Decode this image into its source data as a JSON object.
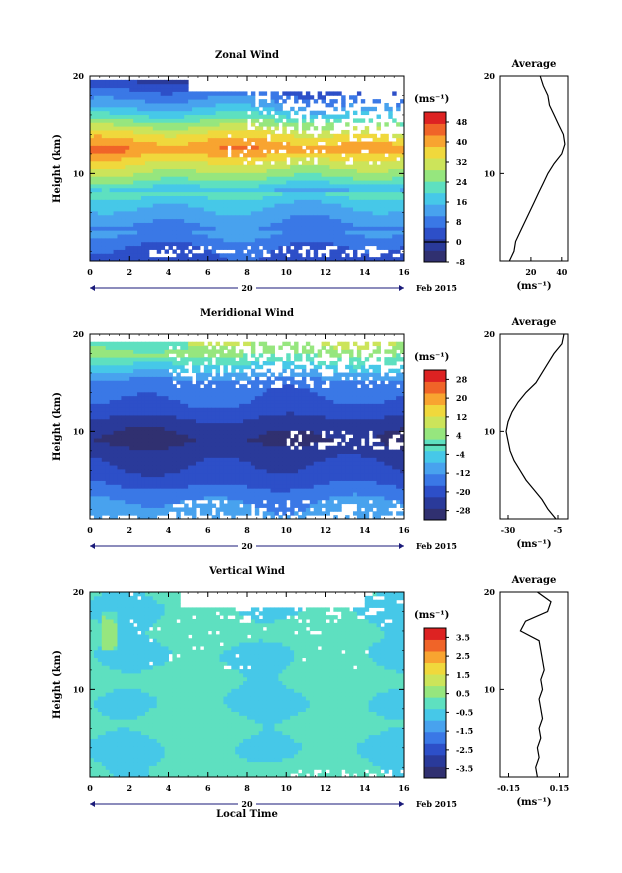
{
  "chart_data": {
    "type": "heatmap",
    "xlabel": "Local Time",
    "date_label": "Feb 2015",
    "date_tick": "20",
    "x_ticks": [
      "0",
      "2",
      "4",
      "6",
      "8",
      "10",
      "12",
      "14",
      "16"
    ],
    "x_range": [
      0,
      16
    ],
    "y_range": [
      1,
      20
    ],
    "y_ticks": [
      "10",
      "20"
    ],
    "height_label": "Height (km)",
    "unit_label": "(ms⁻¹)",
    "avg_title": "Average",
    "palette": [
      "#303070",
      "#2a3a9a",
      "#2d4fc8",
      "#3a78e6",
      "#48a2ee",
      "#46c8e8",
      "#5ee0c0",
      "#96e67e",
      "#cce45a",
      "#f0d83c",
      "#f8a430",
      "#f06428",
      "#dd2222"
    ],
    "panels": [
      {
        "title": "Zonal Wind",
        "cbar_ticks": [
          "48",
          "40",
          "32",
          "24",
          "16",
          "8",
          "0",
          "-8"
        ],
        "cbar_range": [
          -8,
          52
        ],
        "cbar_zero_line": 0,
        "profile": {
          "xlim": [
            0,
            44
          ],
          "x_ticks": [
            "20",
            "40"
          ],
          "height": [
            1,
            2,
            3,
            4,
            5,
            6,
            7,
            8,
            9,
            10,
            11,
            12,
            13,
            14,
            15,
            16,
            17,
            18,
            19,
            20
          ],
          "values": [
            6,
            9,
            10,
            13,
            16,
            19,
            22,
            25,
            28,
            31,
            35,
            40,
            42,
            41,
            38,
            35,
            32,
            31,
            28,
            26
          ]
        }
      },
      {
        "title": "Meridional Wind",
        "cbar_ticks": [
          "28",
          "20",
          "12",
          "4",
          "-4",
          "-12",
          "-20",
          "-28"
        ],
        "cbar_range": [
          -32,
          32
        ],
        "cbar_zero_line": 0,
        "profile": {
          "xlim": [
            -34,
            0
          ],
          "x_ticks": [
            "-30",
            "-5"
          ],
          "height": [
            1,
            2,
            3,
            4,
            5,
            6,
            7,
            8,
            9,
            10,
            11,
            12,
            13,
            14,
            15,
            16,
            17,
            18,
            19,
            20
          ],
          "values": [
            -6,
            -10,
            -13,
            -17,
            -21,
            -24,
            -27,
            -29,
            -30,
            -31,
            -30,
            -28,
            -25,
            -21,
            -16,
            -13,
            -10,
            -7,
            -3,
            -2
          ]
        }
      },
      {
        "title": "Vertical Wind",
        "cbar_ticks": [
          "3.5",
          "2.5",
          "1.5",
          "0.5",
          "-0.5",
          "-1.5",
          "-2.5",
          "-3.5"
        ],
        "cbar_range": [
          -4,
          4
        ],
        "cbar_zero_line": null,
        "profile": {
          "xlim": [
            -0.2,
            0.2
          ],
          "x_ticks": [
            "-0.15",
            "0.15"
          ],
          "height": [
            1,
            2,
            3,
            4,
            5,
            6,
            7,
            8,
            9,
            10,
            11,
            12,
            13,
            14,
            15,
            16,
            17,
            18,
            19,
            20
          ],
          "values": [
            0.02,
            0.01,
            0.03,
            0.02,
            0.04,
            0.03,
            0.05,
            0.04,
            0.03,
            0.05,
            0.04,
            0.06,
            0.05,
            0.04,
            0.03,
            -0.08,
            -0.05,
            0.08,
            0.1,
            0.02
          ]
        }
      }
    ]
  }
}
